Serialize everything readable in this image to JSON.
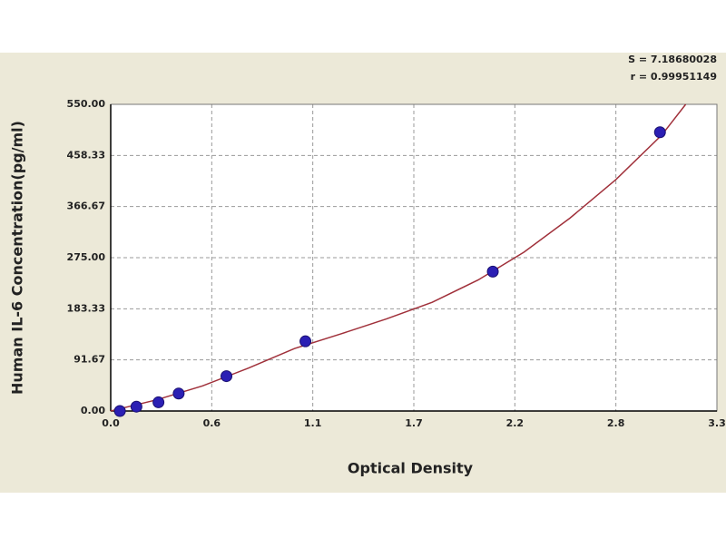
{
  "chart_data": {
    "type": "scatter",
    "xlabel": "Optical Density",
    "ylabel": "Human IL-6 Concentration(pg/ml)",
    "annotations": [
      "S = 7.18680028",
      "r = 0.99951149"
    ],
    "xlim": [
      0,
      3.3
    ],
    "ylim": [
      0,
      550
    ],
    "xticks": [
      {
        "value": 0,
        "label": "0.0"
      },
      {
        "value": 0.55,
        "label": "0.6"
      },
      1.1,
      {
        "value": 1.65,
        "label": "1.7"
      },
      2.2,
      {
        "value": 2.75,
        "label": "2.8"
      },
      3.3
    ],
    "yticks": [
      {
        "value": 0,
        "label": "0.00"
      },
      91.67,
      183.33,
      {
        "value": 275,
        "label": "275.00"
      },
      366.67,
      458.33,
      {
        "value": 550,
        "label": "550.00"
      }
    ],
    "grid": true,
    "series": [
      {
        "color": "#2b1fb4",
        "x": [
          0.05,
          0.14,
          0.26,
          0.37,
          0.63,
          1.06,
          2.08,
          2.99
        ],
        "values": [
          0,
          7.8,
          15.6,
          31.25,
          62.5,
          125,
          250,
          500
        ]
      },
      {
        "type": "line",
        "color": "#a0303a",
        "x": [
          0,
          0.25,
          0.5,
          0.75,
          1.0,
          1.25,
          1.5,
          1.75,
          2.0,
          2.25,
          2.5,
          2.75,
          3.0,
          3.13
        ],
        "values": [
          0,
          20,
          45,
          77,
          112,
          138,
          165,
          195,
          235,
          285,
          346,
          415,
          495,
          550
        ]
      }
    ]
  }
}
